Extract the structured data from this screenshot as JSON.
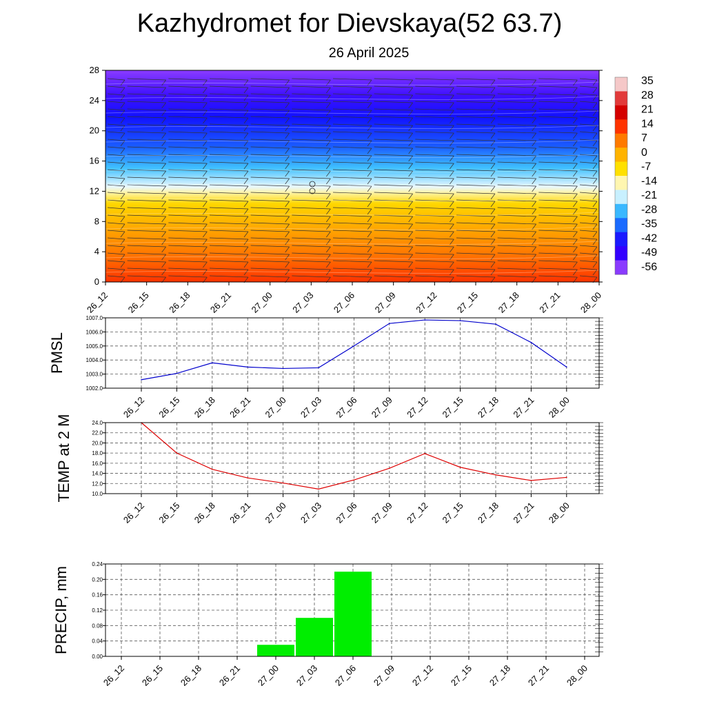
{
  "header": {
    "title": "Kazhydromet for Dievskaya(52 63.7)",
    "subtitle": "26 April 2025"
  },
  "chart_data": [
    {
      "type": "heatmap",
      "name": "vertical-temperature-wind",
      "x_labels": [
        "26_12",
        "26_15",
        "26_18",
        "26_21",
        "27_00",
        "27_03",
        "27_06",
        "27_09",
        "27_12",
        "27_15",
        "27_18",
        "27_21",
        "28_00"
      ],
      "ylim": [
        0,
        28
      ],
      "y_ticks": [
        0,
        4,
        8,
        12,
        16,
        20,
        24,
        28
      ],
      "colorbar": {
        "labels": [
          "35",
          "28",
          "21",
          "14",
          "7",
          "0",
          "-7",
          "-14",
          "-21",
          "-28",
          "-35",
          "-42",
          "-49",
          "-56"
        ],
        "colors": [
          "#f5c8c8",
          "#e23a3a",
          "#d40000",
          "#ff3300",
          "#ff7a00",
          "#ffb300",
          "#ffe000",
          "#fff6b0",
          "#c8f0ff",
          "#3ab8ff",
          "#1a6bff",
          "#1a1aff",
          "#3300ff",
          "#8a3bff"
        ]
      }
    },
    {
      "type": "line",
      "ylabel": "PMSL",
      "x_labels": [
        "26_12",
        "26_15",
        "26_18",
        "26_21",
        "27_00",
        "27_03",
        "27_06",
        "27_09",
        "27_12",
        "27_15",
        "27_18",
        "27_21",
        "28_00"
      ],
      "values": [
        1002.6,
        1003.05,
        1003.8,
        1003.5,
        1003.4,
        1003.45,
        1005.0,
        1006.6,
        1006.85,
        1006.8,
        1006.55,
        1005.25,
        1003.5
      ],
      "ylim": [
        1002.0,
        1007.0
      ],
      "y_ticks": [
        "1002.0",
        "1003.0",
        "1004.0",
        "1005.0",
        "1006.0",
        "1007.0"
      ],
      "color": "#0000cc"
    },
    {
      "type": "line",
      "ylabel": "TEMP at 2 M",
      "x_labels": [
        "26_12",
        "26_15",
        "26_18",
        "26_21",
        "27_00",
        "27_03",
        "27_06",
        "27_09",
        "27_12",
        "27_15",
        "27_18",
        "27_21",
        "28_00"
      ],
      "values": [
        24.0,
        18.0,
        14.8,
        13.1,
        12.1,
        10.9,
        12.7,
        15.0,
        17.9,
        15.2,
        13.7,
        12.6,
        13.2
      ],
      "ylim": [
        10.0,
        24.0
      ],
      "y_ticks": [
        "10.0",
        "12.0",
        "14.0",
        "16.0",
        "18.0",
        "20.0",
        "22.0",
        "24.0"
      ],
      "color": "#dd0000"
    },
    {
      "type": "bar",
      "ylabel": "PRECIP, mm",
      "x_labels": [
        "26_12",
        "26_15",
        "26_18",
        "26_21",
        "27_00",
        "27_03",
        "27_06",
        "27_09",
        "27_12",
        "27_15",
        "27_18",
        "27_21",
        "28_00"
      ],
      "values": [
        0,
        0,
        0,
        0,
        0.03,
        0.1,
        0.22,
        0,
        0,
        0,
        0,
        0,
        0
      ],
      "ylim": [
        0,
        0.24
      ],
      "y_ticks": [
        "0.00",
        "0.04",
        "0.08",
        "0.12",
        "0.16",
        "0.20",
        "0.24"
      ],
      "color": "#00ee00"
    }
  ]
}
